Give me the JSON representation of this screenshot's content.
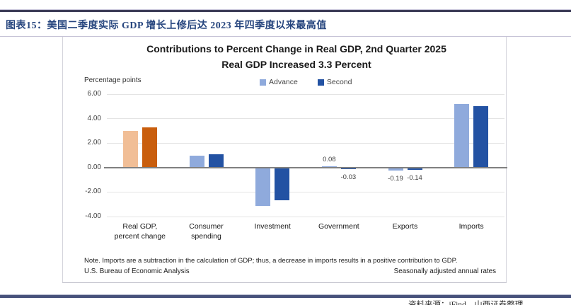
{
  "header": {
    "caption": "图表15：美国二季度实际 GDP 增长上修后达 2023 年四季度以来最高值"
  },
  "footer": {
    "source": "资料来源：iFind，山西证券整理"
  },
  "chart_data": {
    "type": "bar",
    "title": "Contributions to Percent Change in Real GDP, 2nd Quarter 2025",
    "subtitle": "Real GDP Increased 3.3 Percent",
    "axis_label": "Percentage points",
    "categories": [
      "Real GDP, percent change",
      "Consumer spending",
      "Investment",
      "Government",
      "Exports",
      "Imports"
    ],
    "series": [
      {
        "name": "Advance",
        "values": [
          3.0,
          1.0,
          -3.1,
          0.08,
          -0.19,
          5.2
        ],
        "labels": [
          null,
          null,
          null,
          "0.08",
          "-0.19",
          null
        ]
      },
      {
        "name": "Second",
        "values": [
          3.3,
          1.1,
          -2.6,
          -0.03,
          -0.14,
          5.0
        ],
        "labels": [
          null,
          null,
          null,
          "-0.03",
          "-0.14",
          null
        ]
      }
    ],
    "y_ticks": [
      {
        "label": "6.00",
        "value": 6
      },
      {
        "label": "4.00",
        "value": 4
      },
      {
        "label": "2.00",
        "value": 2
      },
      {
        "label": "0.00",
        "value": 0
      },
      {
        "label": "-2.00",
        "value": -2
      },
      {
        "label": "-4.00",
        "value": -4
      }
    ],
    "ylim": [
      -4,
      6
    ],
    "grid": true,
    "legend_position": "top-center",
    "note": "Note. Imports are a subtraction in the calculation of GDP; thus, a decrease in imports results in a positive contribution to GDP.",
    "source_left": "U.S. Bureau of Economic Analysis",
    "source_right": "Seasonally adjusted annual rates",
    "colors": {
      "advance": "#8FAADC",
      "second": "#2352A3",
      "advance_highlight": "#F1BE96",
      "second_highlight": "#C95E0D",
      "highlight_category": 0,
      "zero_line": "#808080",
      "gridline": "#E4E4E4"
    }
  }
}
